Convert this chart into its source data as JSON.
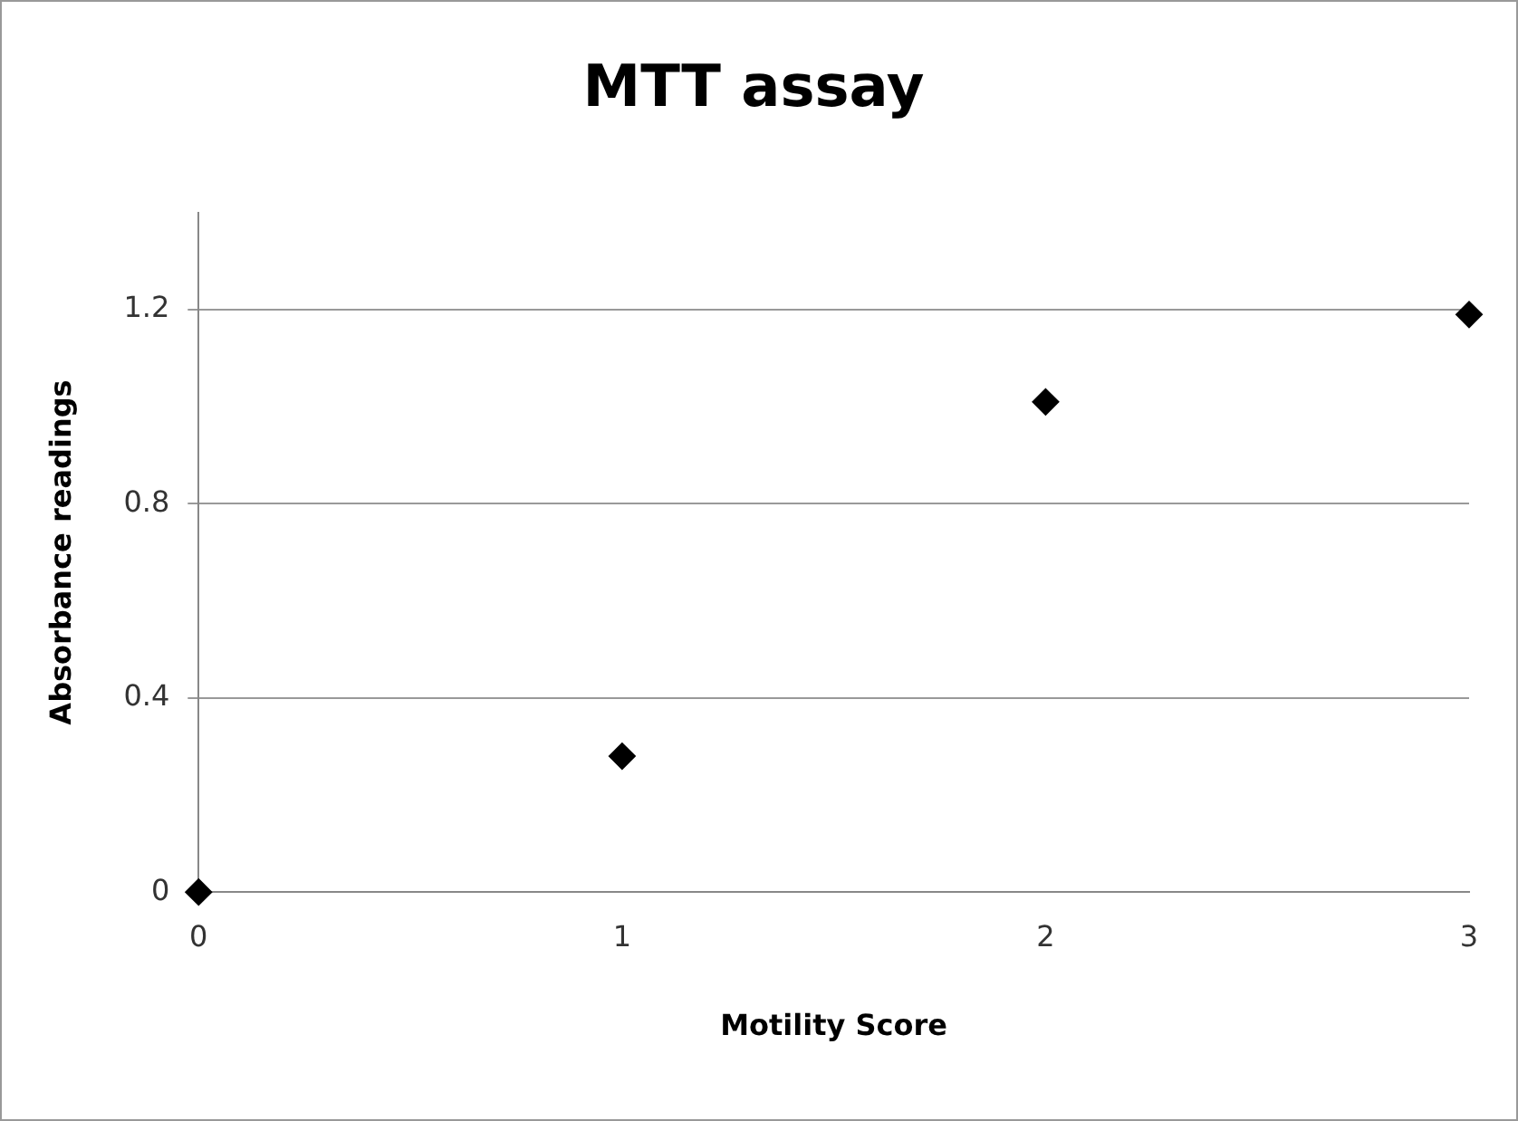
{
  "chart_data": {
    "type": "scatter",
    "title": "MTT assay",
    "xlabel": "Motility Score",
    "ylabel": "Absorbance readings",
    "x": [
      0,
      1,
      2,
      3
    ],
    "series": [
      {
        "color": "#000000",
        "values": [
          0,
          0.28,
          1.01,
          1.19
        ]
      }
    ],
    "xlim": [
      0,
      3
    ],
    "xticks": [
      0,
      1,
      2,
      3
    ],
    "ylim": [
      0,
      1.4
    ],
    "yticks": [
      0,
      0.4,
      0.8,
      1.2
    ],
    "grid": "y",
    "legend": false,
    "marker": "diamond"
  }
}
